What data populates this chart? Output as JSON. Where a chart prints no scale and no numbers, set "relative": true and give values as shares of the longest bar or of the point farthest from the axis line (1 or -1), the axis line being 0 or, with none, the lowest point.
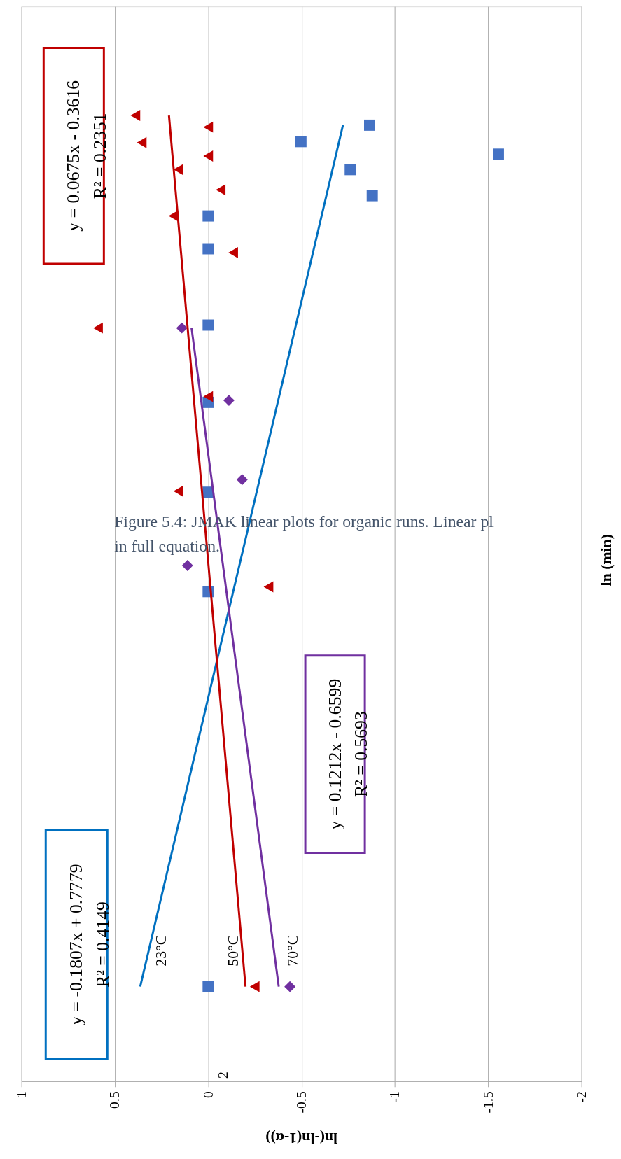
{
  "chart_data": {
    "type": "scatter",
    "xlabel": "ln(-ln(1-α))",
    "ylabel": "ln (min)",
    "relative": true,
    "xlim": [
      1,
      -2
    ],
    "xticks": [
      1,
      0.5,
      0,
      -0.5,
      -1,
      -1.5,
      -2
    ],
    "grid": "x",
    "series": [
      {
        "name": "23°C",
        "color": "#4472c4",
        "marker": "square",
        "x": [
          -0.865,
          -0.497,
          -1.555,
          -0.761,
          -0.879,
          0,
          0,
          0,
          0,
          0,
          0,
          0
        ],
        "values": [
          0.99,
          0.973,
          0.96,
          0.944,
          0.917,
          0.896,
          0.862,
          0.783,
          0.703,
          0.61,
          0.507,
          0.098
        ]
      },
      {
        "name": "50°C",
        "color": "#c00000",
        "marker": "triangle",
        "x": [
          0.39,
          0,
          0.356,
          0,
          0.16,
          -0.067,
          0.186,
          -0.134,
          0.59,
          0,
          0.16,
          -0.323,
          -0.249
        ],
        "values": [
          1,
          0.988,
          0.972,
          0.958,
          0.944,
          0.923,
          0.896,
          0.858,
          0.78,
          0.709,
          0.611,
          0.512,
          0.098
        ]
      },
      {
        "name": "70°C",
        "color": "#7030a0",
        "marker": "diamond",
        "x": [
          0.141,
          -0.111,
          -0.182,
          0.111,
          -0.438
        ],
        "values": [
          0.78,
          0.705,
          0.623,
          0.534,
          0.098
        ]
      },
      {
        "type": "line",
        "color": "#0070c0",
        "marker": "none",
        "line_style": "solid",
        "x": [
          0.364,
          -0.722
        ],
        "values": [
          0.098,
          0.99
        ]
      },
      {
        "type": "line",
        "color": "#c00000",
        "marker": "none",
        "line_style": "solid",
        "x": [
          -0.2,
          0.21
        ],
        "values": [
          0.098,
          1
        ]
      },
      {
        "type": "line",
        "color": "#7030a0",
        "marker": "none",
        "line_style": "solid",
        "x": [
          -0.378,
          0.089
        ],
        "values": [
          0.098,
          0.78
        ]
      }
    ],
    "annotations": [
      "y = 0.0675x - 0.3616\nR² = 0.2351",
      "y = 0.1212x - 0.6599\nR² = 0.5693",
      "y = -0.1807x + 0.7779\nR² = 0.4149",
      "Figure 5.4: JMAK linear plots for organic runs. Linear pl\nin full equation.",
      "2"
    ]
  }
}
